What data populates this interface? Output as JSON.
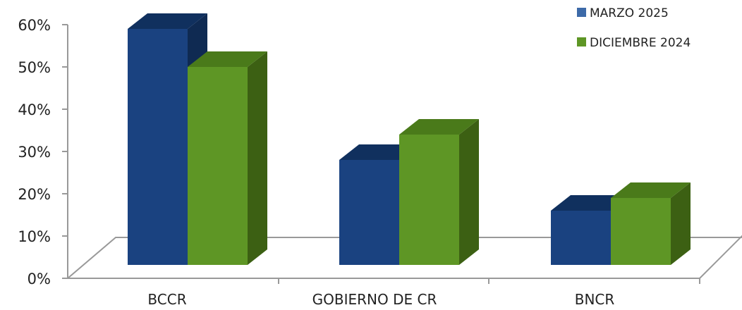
{
  "chart_data": {
    "type": "bar",
    "categories": [
      "BCCR",
      "GOBIERNO DE CR",
      "BNCR"
    ],
    "series": [
      {
        "name": "MARZO 2025",
        "values": [
          0.59,
          0.28,
          0.16
        ]
      },
      {
        "name": "DICIEMBRE 2024",
        "values": [
          0.5,
          0.34,
          0.19
        ]
      }
    ],
    "y_ticks": [
      "0%",
      "10%",
      "20%",
      "30%",
      "40%",
      "50%",
      "60%"
    ],
    "ylim": [
      0,
      0.6
    ],
    "title": "",
    "xlabel": "",
    "ylabel": "",
    "legend_position": "top-right",
    "style": "3d-column",
    "colors": {
      "series": [
        "#1a4280",
        "#5e9625"
      ],
      "series_top": [
        "#10305e",
        "#4a7a1a"
      ],
      "series_side": [
        "#0f2a52",
        "#3c6013"
      ],
      "legend_swatch": [
        "#3d6aa8",
        "#5e9625"
      ],
      "axis": "#999999"
    }
  }
}
